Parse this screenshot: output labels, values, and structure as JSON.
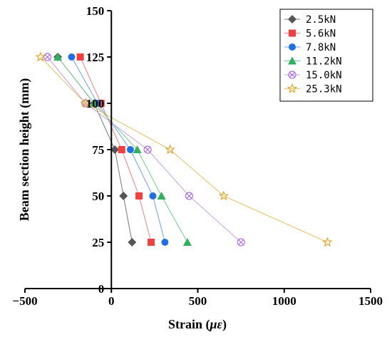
{
  "chart_data": {
    "type": "line",
    "xlabel_prefix": "Strain (",
    "xlabel_unit": "με",
    "xlabel_suffix": ")",
    "ylabel": "Beam section height (mm)",
    "xlim": [
      -500,
      1500
    ],
    "ylim": [
      0,
      150
    ],
    "xticks": [
      -500,
      0,
      500,
      1000,
      1500
    ],
    "yticks": [
      0,
      25,
      50,
      75,
      100,
      125,
      150
    ],
    "x_tick_labels": [
      "−500",
      "0",
      "500",
      "1000",
      "1500"
    ],
    "y_tick_labels": [
      "0",
      "25",
      "50",
      "75",
      "100",
      "125",
      "150"
    ],
    "grid": false,
    "legend_position": "top-right",
    "series": [
      {
        "name": "2.5kN",
        "marker": "diamond",
        "color": "#555555",
        "line_color": "#777777",
        "points": [
          [
            -310,
            125
          ],
          [
            -100,
            100
          ],
          [
            20,
            75
          ],
          [
            70,
            50
          ],
          [
            120,
            25
          ]
        ]
      },
      {
        "name": "5.6kN",
        "marker": "square",
        "color": "#f04040",
        "line_color": "#f08080",
        "points": [
          [
            -180,
            125
          ],
          [
            -60,
            100
          ],
          [
            60,
            75
          ],
          [
            160,
            50
          ],
          [
            230,
            25
          ]
        ]
      },
      {
        "name": "7.8kN",
        "marker": "circle",
        "color": "#2070e0",
        "line_color": "#6aa0f0",
        "points": [
          [
            -230,
            125
          ],
          [
            -80,
            100
          ],
          [
            110,
            75
          ],
          [
            240,
            50
          ],
          [
            310,
            25
          ]
        ]
      },
      {
        "name": "11.2kN",
        "marker": "triangle",
        "color": "#30b060",
        "line_color": "#70cc90",
        "points": [
          [
            -310,
            125
          ],
          [
            -100,
            100
          ],
          [
            150,
            75
          ],
          [
            290,
            50
          ],
          [
            440,
            25
          ]
        ]
      },
      {
        "name": "15.0kN",
        "marker": "circle-x",
        "color": "#b070e0",
        "line_color": "#c8a0ec",
        "points": [
          [
            -370,
            125
          ],
          [
            -150,
            100
          ],
          [
            210,
            75
          ],
          [
            450,
            50
          ],
          [
            750,
            25
          ]
        ]
      },
      {
        "name": "25.3kN",
        "marker": "star",
        "color": "#e0a020",
        "line_color": "#e8c060",
        "points": [
          [
            -410,
            125
          ],
          [
            -150,
            100
          ],
          [
            340,
            75
          ],
          [
            650,
            50
          ],
          [
            1250,
            25
          ]
        ]
      }
    ]
  }
}
